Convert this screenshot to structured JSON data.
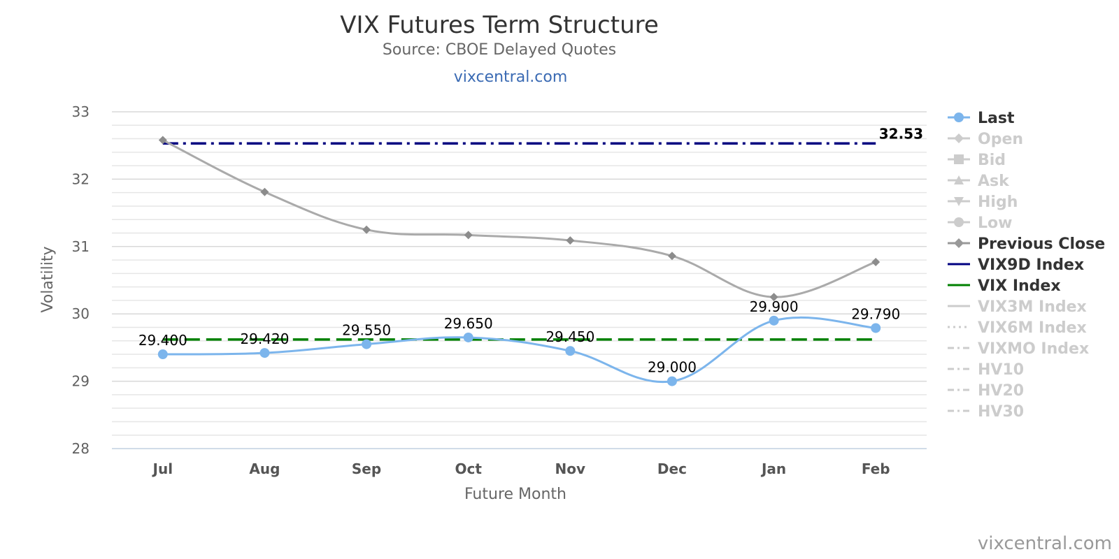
{
  "chart_data": {
    "type": "line",
    "title": "VIX Futures Term Structure",
    "subtitle": "Source: CBOE Delayed Quotes",
    "link_text": "vixcentral.com",
    "credit": "vixcentral.com",
    "xlabel": "Future Month",
    "ylabel": "Volatility",
    "categories": [
      "Jul",
      "Aug",
      "Sep",
      "Oct",
      "Nov",
      "Dec",
      "Jan",
      "Feb"
    ],
    "ylim": [
      28,
      33
    ],
    "yticks": [
      "28",
      "29",
      "30",
      "31",
      "32",
      "33"
    ],
    "grid": true,
    "legend_position": "right",
    "vix9d_label": "32.53",
    "series": [
      {
        "name": "Last",
        "key": "last",
        "values": [
          29.4,
          29.42,
          29.55,
          29.65,
          29.45,
          29.0,
          29.9,
          29.79
        ],
        "labels": [
          "29.400",
          "29.420",
          "29.550",
          "29.650",
          "29.450",
          "29.000",
          "29.900",
          "29.790"
        ],
        "color": "#7cb5ec"
      },
      {
        "name": "Previous Close",
        "key": "prev",
        "values": [
          32.58,
          31.81,
          31.25,
          31.17,
          31.09,
          30.86,
          30.25,
          30.77
        ],
        "color": "#aaaaaa"
      },
      {
        "name": "VIX9D Index",
        "key": "vix9d",
        "values": [
          32.53,
          32.53,
          32.53,
          32.53,
          32.53,
          32.53,
          32.53,
          32.53
        ],
        "color": "#000080"
      },
      {
        "name": "VIX Index",
        "key": "vix",
        "values": [
          29.62,
          29.62,
          29.62,
          29.62,
          29.62,
          29.62,
          29.62,
          29.62
        ],
        "color": "#008000"
      }
    ],
    "legend": [
      {
        "name": "Last",
        "marker": "circle",
        "line": "solid",
        "active": true,
        "color": "#7cb5ec"
      },
      {
        "name": "Open",
        "marker": "diamond",
        "line": "solid",
        "active": false
      },
      {
        "name": "Bid",
        "marker": "square",
        "line": "solid",
        "active": false
      },
      {
        "name": "Ask",
        "marker": "triangle",
        "line": "solid",
        "active": false
      },
      {
        "name": "High",
        "marker": "triangle-down",
        "line": "solid",
        "active": false
      },
      {
        "name": "Low",
        "marker": "circle",
        "line": "solid",
        "active": false
      },
      {
        "name": "Previous Close",
        "marker": "diamond",
        "line": "solid",
        "active": true,
        "color": "#999999"
      },
      {
        "name": "VIX9D Index",
        "marker": "none",
        "line": "solid",
        "active": true,
        "color": "#000080"
      },
      {
        "name": "VIX Index",
        "marker": "none",
        "line": "solid",
        "active": true,
        "color": "#008000"
      },
      {
        "name": "VIX3M Index",
        "marker": "none",
        "line": "solid",
        "active": false
      },
      {
        "name": "VIX6M Index",
        "marker": "none",
        "line": "dot",
        "active": false
      },
      {
        "name": "VIXMO Index",
        "marker": "none",
        "line": "dashdot",
        "active": false
      },
      {
        "name": "HV10",
        "marker": "none",
        "line": "dashdot",
        "active": false
      },
      {
        "name": "HV20",
        "marker": "none",
        "line": "dashdot",
        "active": false
      },
      {
        "name": "HV30",
        "marker": "none",
        "line": "dashdot",
        "active": false
      }
    ]
  }
}
